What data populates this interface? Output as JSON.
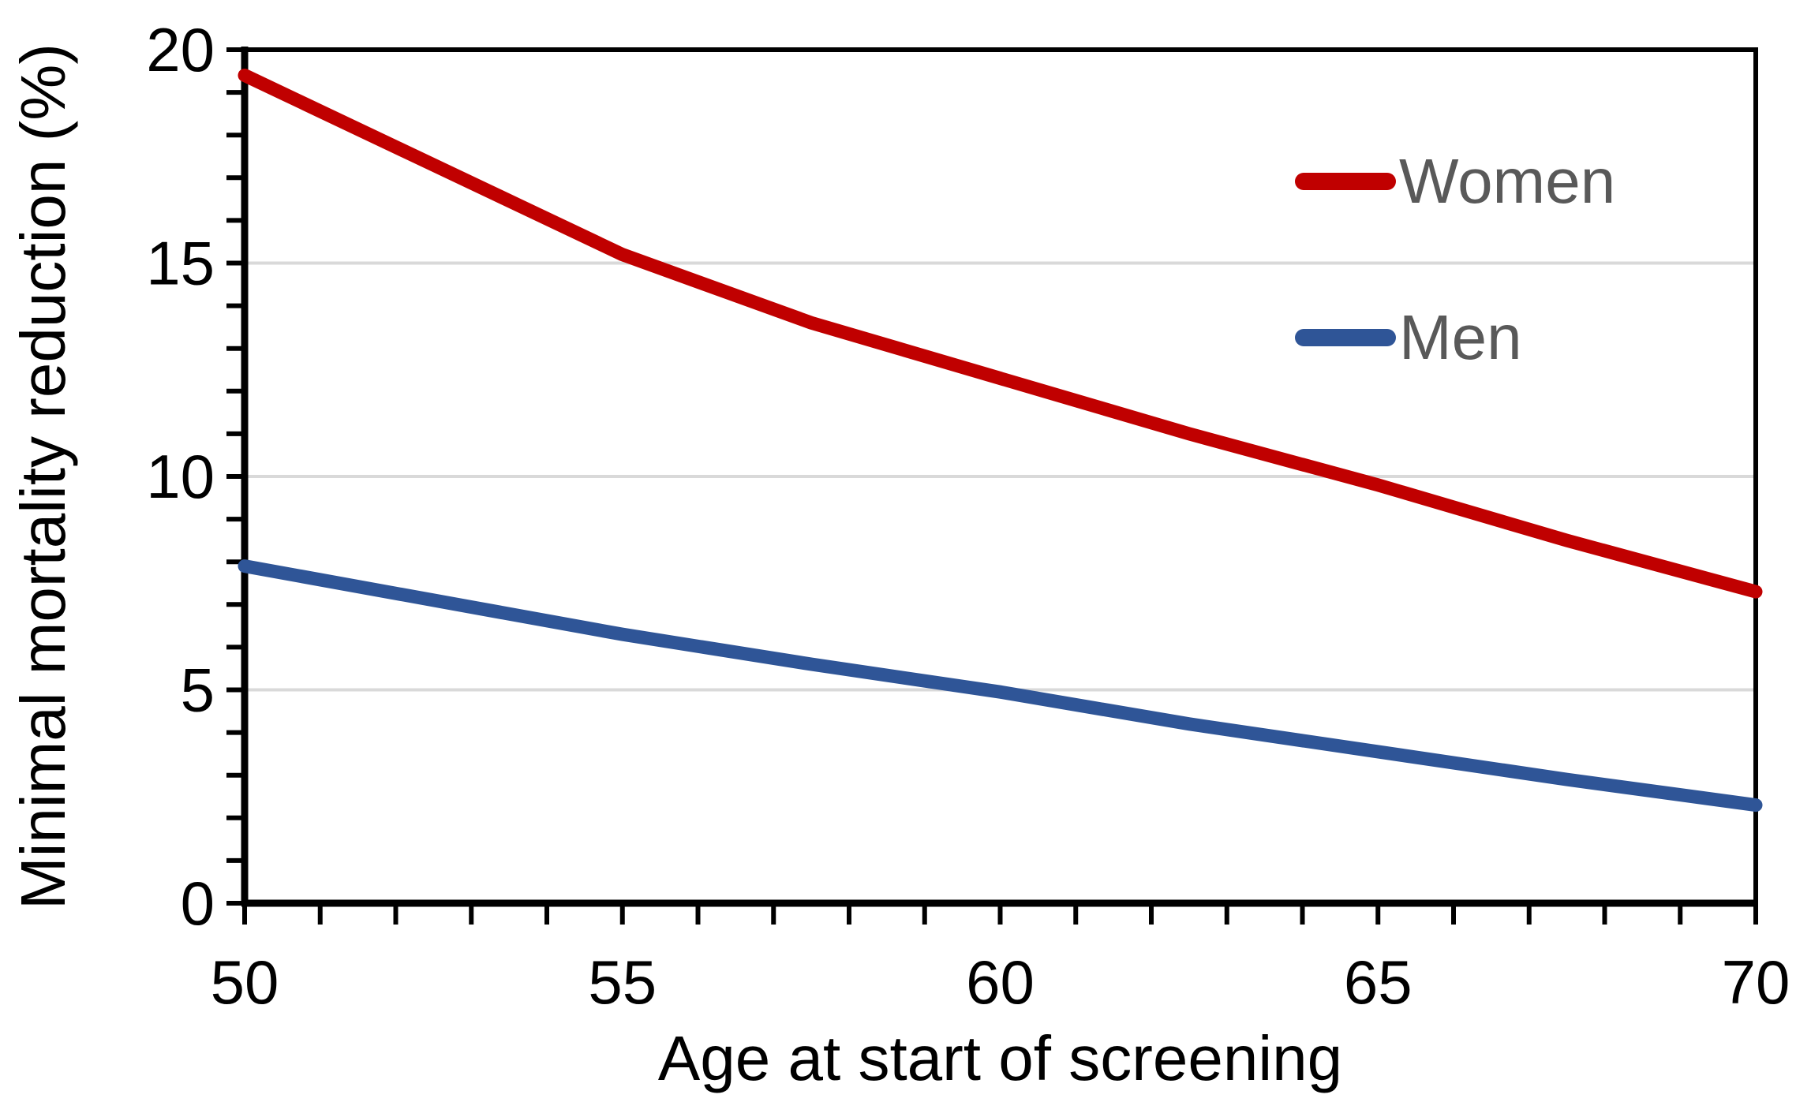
{
  "figure": {
    "background_color": "#ffffff",
    "plot_border_color": "#000000",
    "axis_line_color": "#000000",
    "tick_label_color": "#000000"
  },
  "chart_data": {
    "type": "line",
    "title": "",
    "xlabel": "Age at start of screening",
    "ylabel": "Minimal mortality reduction (%)",
    "xlim": [
      50,
      70
    ],
    "ylim": [
      0,
      20
    ],
    "x_ticks": [
      50,
      55,
      60,
      65,
      70
    ],
    "y_ticks": [
      0,
      5,
      10,
      15,
      20
    ],
    "x_minor_tick_step": 1,
    "y_minor_tick_step": 1,
    "grid": {
      "horizontal_at": [
        5,
        10,
        15
      ],
      "color": "#d9d9d9"
    },
    "x": [
      50,
      52.5,
      55,
      57.5,
      60,
      62.5,
      65,
      67.5,
      70
    ],
    "series": [
      {
        "name": "Women",
        "color": "#c00000",
        "values": [
          19.4,
          17.3,
          15.2,
          13.6,
          12.3,
          11.0,
          9.8,
          8.5,
          7.3
        ]
      },
      {
        "name": "Men",
        "color": "#2f5597",
        "values": [
          7.9,
          7.1,
          6.3,
          5.6,
          4.95,
          4.2,
          3.55,
          2.9,
          2.3
        ]
      }
    ],
    "legend": {
      "position": "top-right-inside",
      "text_color": "#595959"
    }
  }
}
